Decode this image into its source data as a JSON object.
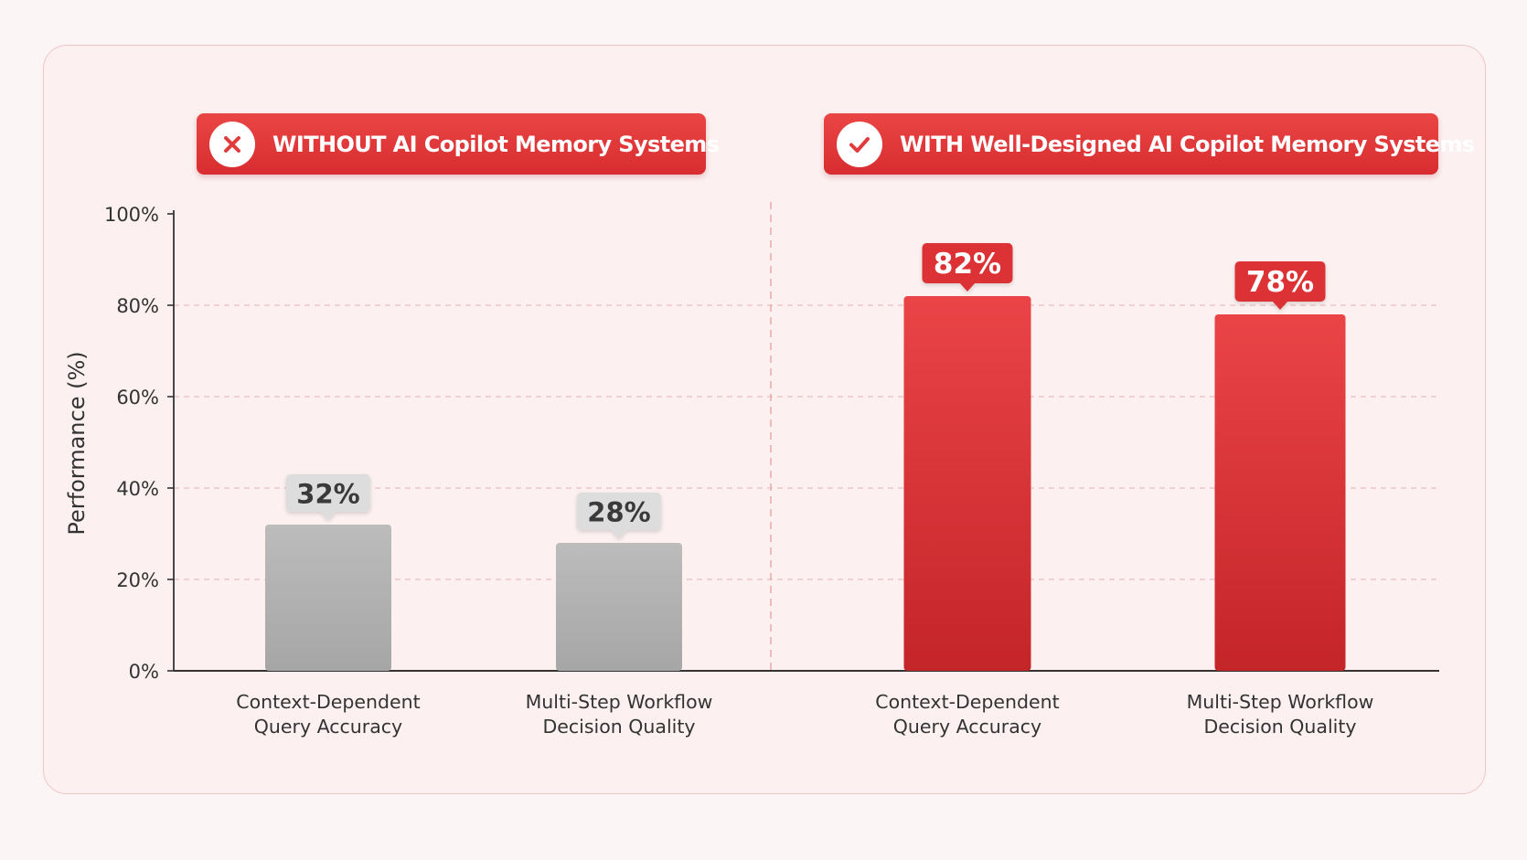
{
  "colors": {
    "accent_red": "#e23b3d",
    "bar_without": "#b3b3b3",
    "bar_with": "#d93236",
    "background": "#fcf0f0"
  },
  "panels": {
    "without": {
      "label": "WITHOUT AI Copilot Memory Systems",
      "icon": "close-icon"
    },
    "with": {
      "label": "WITH Well-Designed AI Copilot Memory Systems",
      "icon": "checkmark-icon"
    }
  },
  "chart_data": {
    "type": "bar",
    "title": "",
    "xlabel": "",
    "ylabel": "Performance (%)",
    "ylim": [
      0,
      100
    ],
    "yticks": [
      "0%",
      "20%",
      "40%",
      "60%",
      "80%",
      "100%"
    ],
    "grid": true,
    "categories": [
      "Context-Dependent Query Accuracy",
      "Multi-Step Workflow Decision Quality",
      "Context-Dependent Query Accuracy",
      "Multi-Step Workflow Decision Quality"
    ],
    "category_lines": [
      [
        "Context-Dependent",
        "Query Accuracy"
      ],
      [
        "Multi-Step Workflow",
        "Decision Quality"
      ],
      [
        "Context-Dependent",
        "Query Accuracy"
      ],
      [
        "Multi-Step Workflow",
        "Decision Quality"
      ]
    ],
    "values": [
      32,
      28,
      82,
      78
    ],
    "data_labels": [
      "32%",
      "28%",
      "82%",
      "78%"
    ],
    "groups": [
      "without",
      "without",
      "with",
      "with"
    ]
  }
}
